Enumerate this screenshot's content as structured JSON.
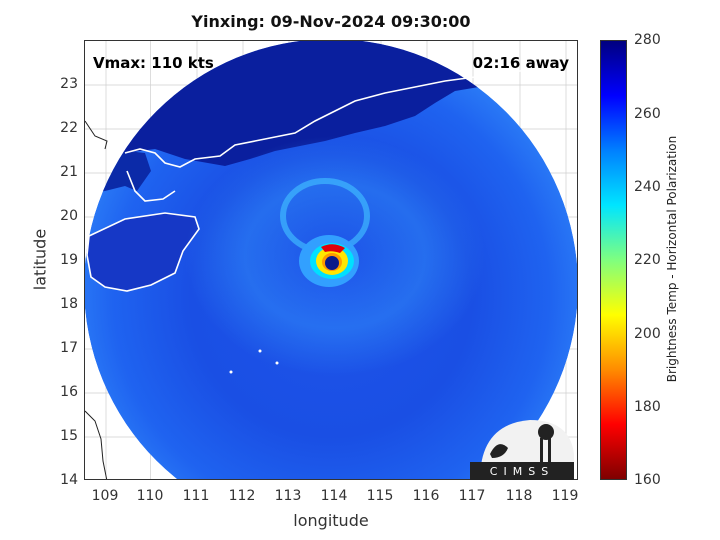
{
  "title": "Yinxing: 09-Nov-2024 09:30:00",
  "annotations": {
    "vmax": "Vmax: 110 kts",
    "time_away": "02:16 away"
  },
  "axes": {
    "xlabel": "longitude",
    "ylabel": "latitude",
    "xticks": [
      "109",
      "110",
      "111",
      "112",
      "113",
      "114",
      "115",
      "116",
      "117",
      "118",
      "119"
    ],
    "yticks": [
      "14",
      "15",
      "16",
      "17",
      "18",
      "19",
      "20",
      "21",
      "22",
      "23"
    ],
    "xlim": [
      108.6,
      119.2
    ],
    "ylim": [
      14,
      24
    ],
    "grid": true
  },
  "colorbar": {
    "label": "Brightness Temp - Horizontal Polarization",
    "ticks": [
      "160",
      "180",
      "200",
      "220",
      "240",
      "260",
      "280"
    ],
    "range": [
      160,
      280
    ],
    "colormap": "jet"
  },
  "map": {
    "storm_eye": {
      "lon": 113.9,
      "lat": 19.0
    },
    "swath_center": {
      "lon": 113.8,
      "lat": 18.7
    },
    "colors": {
      "land_cold": "#0a1f9e",
      "ocean_warm": "#1a5cf0",
      "eyewall_red": "#e0000a",
      "eyewall_yellow": "#ffe600",
      "outline": "#ffffff"
    }
  },
  "logo": {
    "text": "CIMSS"
  }
}
